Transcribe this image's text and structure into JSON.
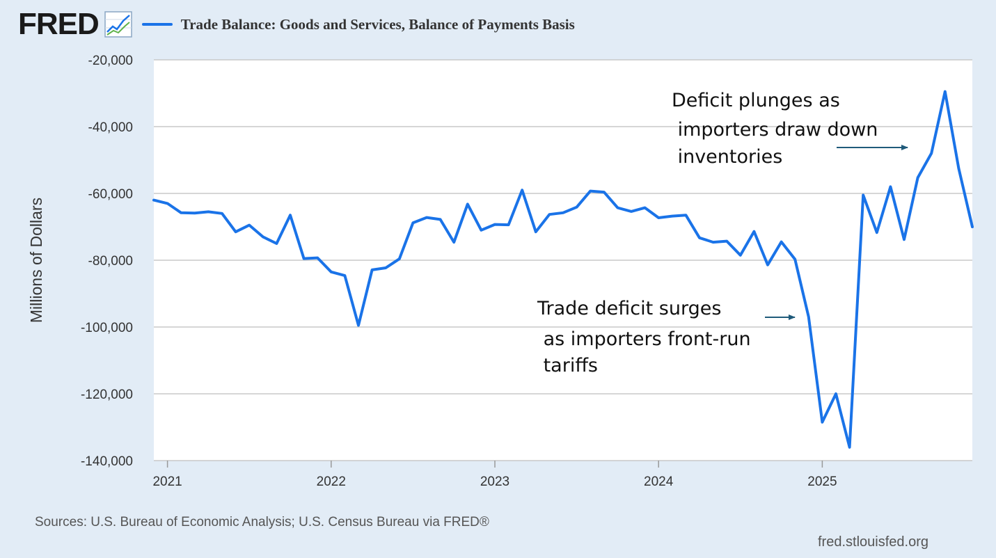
{
  "header": {
    "logo_text": "FRED",
    "logo_icon": "trend-graph-icon",
    "title": "Trade Balance: Goods and Services, Balance of Payments Basis"
  },
  "colors": {
    "series": "#1a73e8",
    "grid": "#c8c8c8",
    "background": "#e2ecf6",
    "plot_bg": "#ffffff",
    "arrow": "#1f5a7a"
  },
  "chart_data": {
    "type": "line",
    "title": "Trade Balance: Goods and Services, Balance of Payments Basis",
    "ylabel": "Millions of Dollars",
    "xlabel": "",
    "ylim": [
      -140000,
      -20000
    ],
    "yticks": [
      -20000,
      -40000,
      -60000,
      -80000,
      -100000,
      -120000,
      -140000
    ],
    "ytick_labels": [
      "-20,000",
      "-40,000",
      "-60,000",
      "-80,000",
      "-100,000",
      "-120,000",
      "-140,000"
    ],
    "x_start": "2020-12",
    "x_end": "2025-12",
    "xticks": [
      "2021",
      "2022",
      "2023",
      "2024",
      "2025"
    ],
    "grid": true,
    "series": [
      {
        "name": "Trade Balance: Goods and Services, Balance of Payments Basis",
        "frequency": "monthly",
        "start": "2020-12",
        "values": [
          -62000,
          -63000,
          -65800,
          -65900,
          -65500,
          -66000,
          -71500,
          -69500,
          -73000,
          -75000,
          -66500,
          -79500,
          -79300,
          -83500,
          -84600,
          -99500,
          -82900,
          -82300,
          -79600,
          -68800,
          -67200,
          -67800,
          -74600,
          -63200,
          -71000,
          -69300,
          -69400,
          -59000,
          -71500,
          -66300,
          -65800,
          -64100,
          -59300,
          -59600,
          -64300,
          -65400,
          -64300,
          -67300,
          -66800,
          -66500,
          -73300,
          -74600,
          -74300,
          -78500,
          -71400,
          -81400,
          -74500,
          -79700,
          -97000,
          -128500,
          -120000,
          -136000,
          -60500,
          -71700,
          -58000,
          -73800,
          -55300,
          -48000,
          -29500,
          -52500,
          -70000
        ]
      }
    ],
    "annotations": [
      {
        "id": "surge",
        "lines": [
          "Trade deficit surges",
          " as importers front-run",
          " tariffs"
        ]
      },
      {
        "id": "plunge",
        "lines": [
          "Deficit plunges as",
          " importers draw down",
          " inventories"
        ]
      }
    ]
  },
  "footer": {
    "source": "Sources: U.S. Bureau of Economic Analysis; U.S. Census Bureau via FRED®",
    "url": "fred.stlouisfed.org"
  }
}
